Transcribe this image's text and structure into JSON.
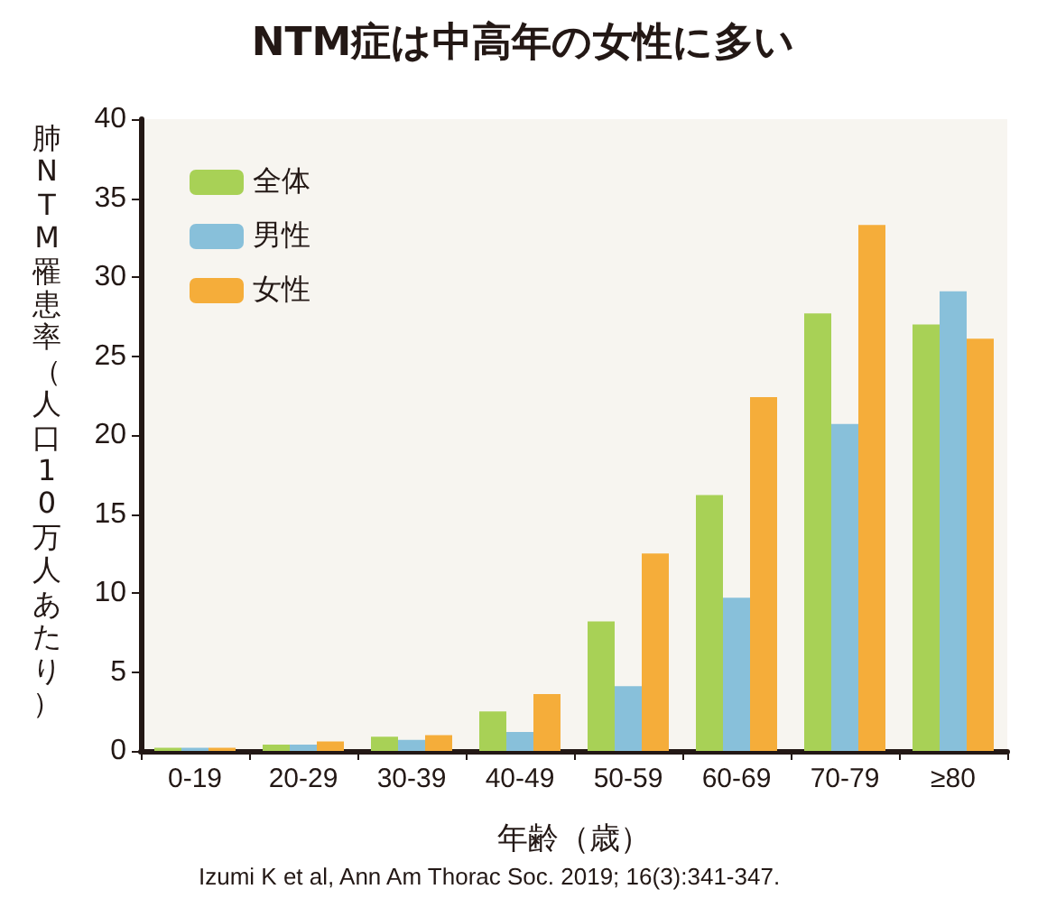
{
  "chart_data": {
    "type": "bar",
    "title": "NTM症は中高年の女性に多い",
    "xlabel": "年齢（歳）",
    "ylabel": "肺NTM罹患率（人口10万人あたり）",
    "annotations": [
      "Izumi K et al, Ann Am Thorac Soc. 2019; 16(3):341-347."
    ],
    "categories": [
      "0-19",
      "20-29",
      "30-39",
      "40-49",
      "50-59",
      "60-69",
      "70-79",
      "≥80"
    ],
    "series": [
      {
        "name": "全体",
        "color": "#a8d156",
        "values": [
          0.2,
          0.4,
          0.9,
          2.5,
          8.2,
          16.2,
          27.7,
          27.0
        ]
      },
      {
        "name": "男性",
        "color": "#88c0da",
        "values": [
          0.2,
          0.4,
          0.7,
          1.2,
          4.1,
          9.7,
          20.7,
          29.1
        ]
      },
      {
        "name": "女性",
        "color": "#f5ad3a",
        "values": [
          0.2,
          0.6,
          1.0,
          3.6,
          12.5,
          22.4,
          33.3,
          26.1
        ]
      }
    ],
    "ylim": [
      0,
      40
    ],
    "yticks": [
      0,
      5,
      10,
      15,
      20,
      25,
      30,
      35,
      40
    ],
    "grid": false,
    "legend": "top left"
  }
}
